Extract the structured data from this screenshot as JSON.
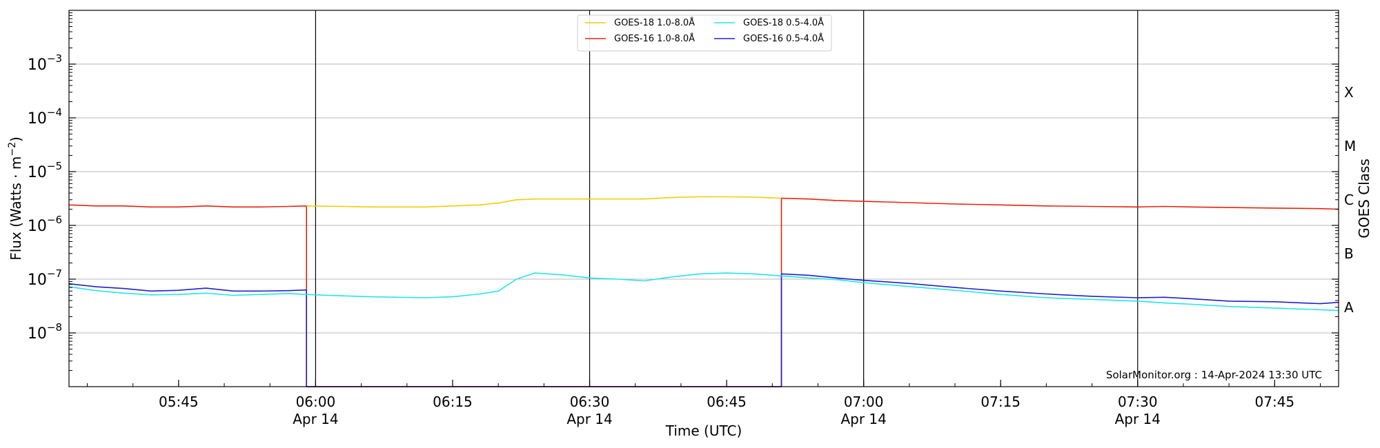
{
  "chart_data": {
    "type": "line",
    "xlabel": "Time (UTC)",
    "ylabel_main": "Flux (Watts · m",
    "ylabel_sup": "−2",
    "ylabel_close": ")",
    "right_label": "GOES Class",
    "y_scale": "log",
    "ylim": [
      1e-09,
      0.01
    ],
    "xlim": [
      "2024-04-14 05:33",
      "2024-04-14 07:52"
    ],
    "y_ticks": [
      {
        "value": 1e-08,
        "base": "10",
        "exp": "−8"
      },
      {
        "value": 1e-07,
        "base": "10",
        "exp": "−7"
      },
      {
        "value": 1e-06,
        "base": "10",
        "exp": "−6"
      },
      {
        "value": 1e-05,
        "base": "10",
        "exp": "−5"
      },
      {
        "value": 0.0001,
        "base": "10",
        "exp": "−4"
      },
      {
        "value": 0.001,
        "base": "10",
        "exp": "−3"
      }
    ],
    "x_ticks": [
      {
        "time": "05:45",
        "label": "05:45",
        "date": ""
      },
      {
        "time": "06:00",
        "label": "06:00",
        "date": "Apr 14"
      },
      {
        "time": "06:15",
        "label": "06:15",
        "date": ""
      },
      {
        "time": "06:30",
        "label": "06:30",
        "date": "Apr 14"
      },
      {
        "time": "06:45",
        "label": "06:45",
        "date": ""
      },
      {
        "time": "07:00",
        "label": "07:00",
        "date": "Apr 14"
      },
      {
        "time": "07:15",
        "label": "07:15",
        "date": ""
      },
      {
        "time": "07:30",
        "label": "07:30",
        "date": "Apr 14"
      },
      {
        "time": "07:45",
        "label": "07:45",
        "date": ""
      }
    ],
    "goes_classes": [
      {
        "label": "A",
        "value": 3e-08
      },
      {
        "label": "B",
        "value": 3e-07
      },
      {
        "label": "C",
        "value": 3e-06
      },
      {
        "label": "M",
        "value": 3e-05
      },
      {
        "label": "X",
        "value": 0.0003
      }
    ],
    "vlines": [
      "06:00",
      "06:30",
      "07:00",
      "07:30"
    ],
    "grid": "horizontal",
    "legend_position": "top-center",
    "legend": [
      {
        "name": "GOES-18 1.0-8.0Å",
        "color": "#f5cc00"
      },
      {
        "name": "GOES-16 1.0-8.0Å",
        "color": "#e8220a"
      },
      {
        "name": "GOES-18 0.5-4.0Å",
        "color": "#22e5ea"
      },
      {
        "name": "GOES-16 0.5-4.0Å",
        "color": "#2020c8"
      }
    ],
    "annotation": "SolarMonitor.org : 14-Apr-2024 13:30 UTC",
    "series": [
      {
        "name": "GOES-16 1.0-8.0Å",
        "color": "#e8220a",
        "x": [
          "05:33",
          "05:36",
          "05:39",
          "05:42",
          "05:45",
          "05:48",
          "05:51",
          "05:54",
          "05:57",
          "05:59",
          "05:59",
          "06:51",
          "06:51",
          "06:54",
          "06:57",
          "07:00",
          "07:05",
          "07:10",
          "07:15",
          "07:20",
          "07:25",
          "07:30",
          "07:33",
          "07:36",
          "07:40",
          "07:45",
          "07:50",
          "07:52"
        ],
        "y": [
          2.4e-06,
          2.3e-06,
          2.3e-06,
          2.2e-06,
          2.2e-06,
          2.3e-06,
          2.2e-06,
          2.2e-06,
          2.25e-06,
          2.3e-06,
          1e-09,
          1e-09,
          3.2e-06,
          3.1e-06,
          2.9e-06,
          2.8e-06,
          2.65e-06,
          2.5e-06,
          2.4e-06,
          2.3e-06,
          2.25e-06,
          2.2e-06,
          2.25e-06,
          2.2e-06,
          2.15e-06,
          2.1e-06,
          2.05e-06,
          2e-06
        ]
      },
      {
        "name": "GOES-18 1.0-8.0Å",
        "color": "#f5cc00",
        "x": [
          "05:59",
          "06:03",
          "06:06",
          "06:09",
          "06:12",
          "06:15",
          "06:18",
          "06:20",
          "06:22",
          "06:24",
          "06:27",
          "06:30",
          "06:33",
          "06:36",
          "06:39",
          "06:42",
          "06:45",
          "06:48",
          "06:51"
        ],
        "y": [
          2.3e-06,
          2.25e-06,
          2.2e-06,
          2.2e-06,
          2.2e-06,
          2.3e-06,
          2.4e-06,
          2.6e-06,
          3e-06,
          3.1e-06,
          3.1e-06,
          3.1e-06,
          3.1e-06,
          3.1e-06,
          3.3e-06,
          3.4e-06,
          3.4e-06,
          3.35e-06,
          3.2e-06
        ]
      },
      {
        "name": "GOES-16 0.5-4.0Å",
        "color": "#2020c8",
        "x": [
          "05:33",
          "05:36",
          "05:39",
          "05:42",
          "05:45",
          "05:48",
          "05:51",
          "05:54",
          "05:57",
          "05:59",
          "05:59",
          "06:51",
          "06:51",
          "06:54",
          "06:57",
          "07:00",
          "07:05",
          "07:10",
          "07:15",
          "07:20",
          "07:25",
          "07:30",
          "07:33",
          "07:36",
          "07:40",
          "07:45",
          "07:50",
          "07:52"
        ],
        "y": [
          8.2e-08,
          7.2e-08,
          6.7e-08,
          6e-08,
          6.2e-08,
          6.8e-08,
          6e-08,
          6e-08,
          6.1e-08,
          6.3e-08,
          1e-09,
          1e-09,
          1.25e-07,
          1.18e-07,
          1.05e-07,
          9.5e-08,
          8.3e-08,
          7e-08,
          6e-08,
          5.3e-08,
          4.8e-08,
          4.5e-08,
          4.6e-08,
          4.3e-08,
          3.9e-08,
          3.8e-08,
          3.5e-08,
          3.7e-08
        ]
      },
      {
        "name": "GOES-18 0.5-4.0Å",
        "color": "#22e5ea",
        "x": [
          "05:33",
          "05:36",
          "05:39",
          "05:42",
          "05:45",
          "05:48",
          "05:51",
          "05:54",
          "05:57",
          "06:00",
          "06:03",
          "06:06",
          "06:09",
          "06:12",
          "06:15",
          "06:18",
          "06:20",
          "06:22",
          "06:24",
          "06:27",
          "06:30",
          "06:33",
          "06:36",
          "06:39",
          "06:42",
          "06:45",
          "06:48",
          "06:51",
          "06:54",
          "06:57",
          "07:00",
          "07:05",
          "07:10",
          "07:15",
          "07:20",
          "07:25",
          "07:30",
          "07:33",
          "07:36",
          "07:40",
          "07:45",
          "07:50",
          "07:52"
        ],
        "y": [
          7.2e-08,
          6.1e-08,
          5.5e-08,
          5.1e-08,
          5.2e-08,
          5.5e-08,
          5e-08,
          5.2e-08,
          5.4e-08,
          5.1e-08,
          4.9e-08,
          4.7e-08,
          4.6e-08,
          4.5e-08,
          4.7e-08,
          5.3e-08,
          6e-08,
          1e-07,
          1.3e-07,
          1.2e-07,
          1.05e-07,
          1e-07,
          9.3e-08,
          1.1e-07,
          1.25e-07,
          1.3e-07,
          1.25e-07,
          1.15e-07,
          1.05e-07,
          9.8e-08,
          8.6e-08,
          7.3e-08,
          6.2e-08,
          5.2e-08,
          4.5e-08,
          4.2e-08,
          3.9e-08,
          3.6e-08,
          3.4e-08,
          3.1e-08,
          2.9e-08,
          2.7e-08,
          2.6e-08
        ]
      }
    ]
  }
}
